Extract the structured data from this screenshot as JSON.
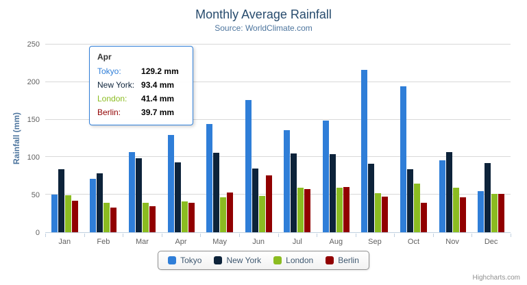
{
  "chart_data": {
    "type": "bar",
    "title": "Monthly Average Rainfall",
    "subtitle": "Source: WorldClimate.com",
    "ylabel": "Rainfall (mm)",
    "xlabel": "",
    "categories": [
      "Jan",
      "Feb",
      "Mar",
      "Apr",
      "May",
      "Jun",
      "Jul",
      "Aug",
      "Sep",
      "Oct",
      "Nov",
      "Dec"
    ],
    "series": [
      {
        "name": "Tokyo",
        "color": "#2f7ed8",
        "values": [
          49.9,
          71.5,
          106.4,
          129.2,
          144.0,
          176.0,
          135.6,
          148.5,
          216.4,
          194.1,
          95.6,
          54.4
        ]
      },
      {
        "name": "New York",
        "color": "#0d233a",
        "values": [
          83.6,
          78.8,
          98.5,
          93.4,
          106.0,
          84.5,
          105.0,
          104.3,
          91.2,
          83.5,
          106.6,
          92.3
        ]
      },
      {
        "name": "London",
        "color": "#8bbc21",
        "values": [
          48.9,
          38.8,
          39.3,
          41.4,
          47.0,
          48.3,
          59.0,
          59.6,
          52.4,
          65.2,
          59.3,
          51.2
        ]
      },
      {
        "name": "Berlin",
        "color": "#910000",
        "values": [
          42.4,
          33.2,
          34.5,
          39.7,
          52.6,
          75.5,
          57.4,
          60.4,
          47.6,
          39.1,
          46.8,
          51.1
        ]
      }
    ],
    "ylim": [
      0,
      250
    ],
    "y_ticks": [
      0,
      50,
      100,
      150,
      200,
      250
    ],
    "grid": true,
    "legend_position": "bottom"
  },
  "tooltip": {
    "header": "Apr",
    "border_color": "#2f7ed8",
    "rows": [
      {
        "name": "Tokyo",
        "color": "#2f7ed8",
        "value": "129.2 mm"
      },
      {
        "name": "New York",
        "color": "#0d233a",
        "value": "93.4 mm"
      },
      {
        "name": "London",
        "color": "#8bbc21",
        "value": "41.4 mm"
      },
      {
        "name": "Berlin",
        "color": "#910000",
        "value": "39.7 mm"
      }
    ]
  },
  "credits": "Highcharts.com"
}
